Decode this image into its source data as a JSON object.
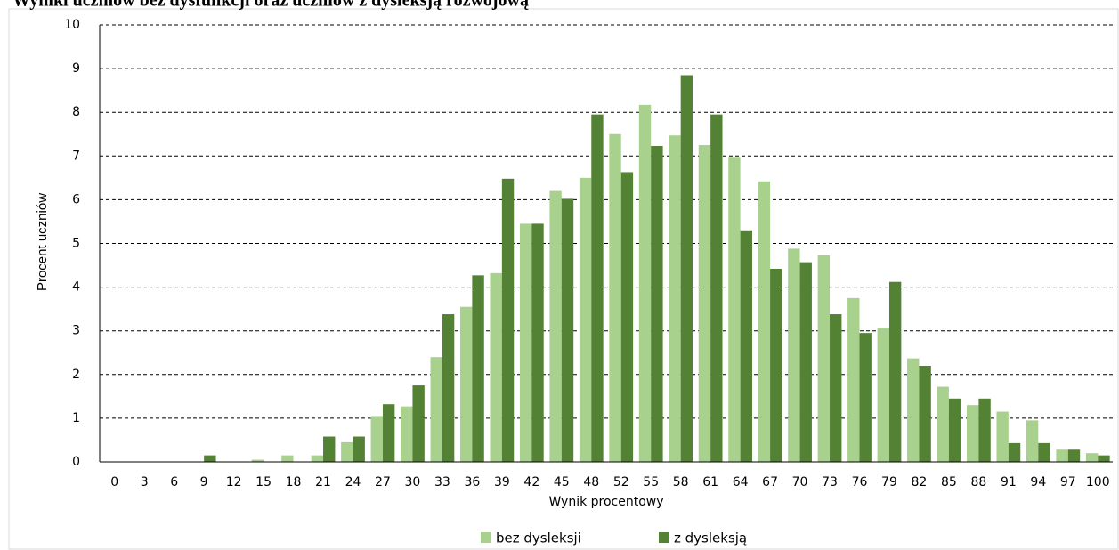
{
  "chart_data": {
    "type": "bar",
    "title": "Wyniki uczniów bez dysfunkcji oraz uczniów z dysleksją rozwojową",
    "x_label": "Wynik procentowy",
    "y_label": "Procent uczniów",
    "categories": [
      "0",
      "3",
      "6",
      "9",
      "12",
      "15",
      "18",
      "21",
      "24",
      "27",
      "30",
      "33",
      "36",
      "39",
      "42",
      "45",
      "48",
      "52",
      "55",
      "58",
      "61",
      "64",
      "67",
      "70",
      "73",
      "76",
      "79",
      "82",
      "85",
      "88",
      "91",
      "94",
      "97",
      "100"
    ],
    "series": [
      {
        "name": "bez dysleksji",
        "color": "#a9d18e",
        "values": [
          0,
          0,
          0,
          0,
          0,
          0.05,
          0.15,
          0.15,
          0.45,
          1.05,
          1.27,
          2.4,
          3.55,
          4.32,
          5.45,
          6.2,
          6.5,
          7.5,
          8.17,
          7.47,
          7.25,
          6.98,
          6.42,
          4.88,
          4.73,
          3.75,
          3.07,
          2.37,
          1.72,
          1.3,
          1.15,
          0.95,
          0.28,
          0.2
        ]
      },
      {
        "name": "z dysleksją",
        "color": "#548235",
        "values": [
          0,
          0,
          0,
          0.15,
          0,
          0,
          0,
          0.58,
          0.58,
          1.32,
          1.75,
          3.38,
          4.27,
          6.48,
          5.45,
          6.02,
          7.95,
          6.63,
          7.23,
          8.85,
          7.95,
          5.3,
          4.42,
          4.57,
          3.38,
          2.95,
          4.12,
          2.2,
          1.45,
          1.45,
          0.43,
          0.43,
          0.28,
          0.15
        ]
      }
    ],
    "ylim": [
      0,
      10
    ],
    "yticks": [
      0,
      1,
      2,
      3,
      4,
      5,
      6,
      7,
      8,
      9,
      10
    ],
    "grid": true,
    "legend": "bottom"
  }
}
